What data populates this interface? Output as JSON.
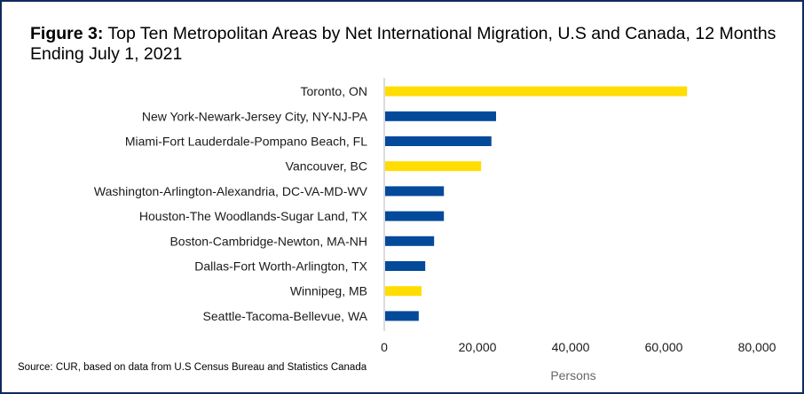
{
  "title": {
    "prefix": "Figure 3:",
    "text": "Top Ten Metropolitan Areas by Net International Migration, U.S and Canada, 12 Months Ending July 1, 2021"
  },
  "source": "Source: CUR, based on data from U.S Census Bureau and Statistics Canada",
  "colors": {
    "us": "#034a9a",
    "canada": "#ffdd00",
    "axis": "#d0d0d0",
    "border": "#0f2a5c"
  },
  "chart_data": {
    "type": "bar",
    "orientation": "horizontal",
    "title": "Figure 3: Top Ten Metropolitan Areas by Net International Migration, U.S and Canada, 12 Months Ending July 1, 2021",
    "xlabel": "Persons",
    "ylabel": "",
    "xlim": [
      0,
      80000
    ],
    "xticks": [
      0,
      20000,
      40000,
      60000,
      80000
    ],
    "xtick_labels": [
      "0",
      "20,000",
      "40,000",
      "60,000",
      "80,000"
    ],
    "grid": false,
    "categories": [
      "Toronto, ON",
      "New York-Newark-Jersey City, NY-NJ-PA",
      "Miami-Fort Lauderdale-Pompano Beach, FL",
      "Vancouver, BC",
      "Washington-Arlington-Alexandria, DC-VA-MD-WV",
      "Houston-The Woodlands-Sugar Land, TX",
      "Boston-Cambridge-Newton, MA-NH",
      "Dallas-Fort Worth-Arlington, TX",
      "Winnipeg, MB",
      "Seattle-Tacoma-Bellevue, WA"
    ],
    "values": [
      65000,
      24000,
      23000,
      20800,
      12800,
      12800,
      10700,
      8800,
      8000,
      7400
    ],
    "country": [
      "canada",
      "us",
      "us",
      "canada",
      "us",
      "us",
      "us",
      "us",
      "canada",
      "us"
    ]
  }
}
